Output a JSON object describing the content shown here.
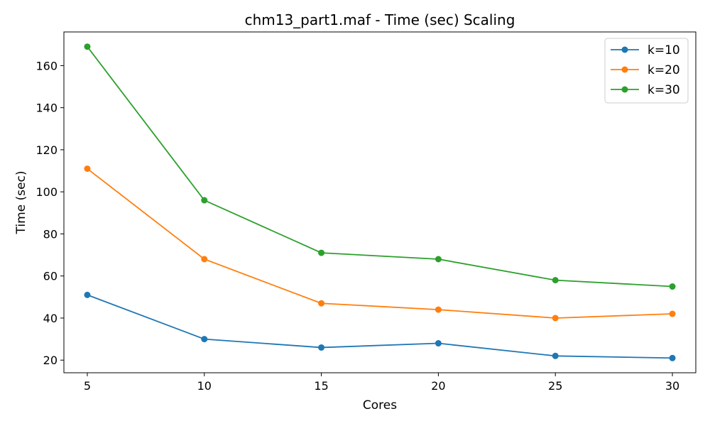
{
  "chart_data": {
    "type": "line",
    "title": "chm13_part1.maf - Time (sec) Scaling",
    "xlabel": "Cores",
    "ylabel": "Time (sec)",
    "x": [
      5,
      10,
      15,
      20,
      25,
      30
    ],
    "xticks": [
      5,
      10,
      15,
      20,
      25,
      30
    ],
    "yticks": [
      20,
      40,
      60,
      80,
      100,
      120,
      140,
      160
    ],
    "xlim": [
      4,
      31
    ],
    "ylim": [
      14,
      176
    ],
    "grid": false,
    "legend_position": "top-right",
    "series": [
      {
        "name": "k=10",
        "color": "#1f77b4",
        "values": [
          51,
          30,
          26,
          28,
          22,
          21
        ]
      },
      {
        "name": "k=20",
        "color": "#ff7f0e",
        "values": [
          111,
          68,
          47,
          44,
          40,
          42
        ]
      },
      {
        "name": "k=30",
        "color": "#2ca02c",
        "values": [
          169,
          96,
          71,
          68,
          58,
          55
        ]
      }
    ]
  }
}
